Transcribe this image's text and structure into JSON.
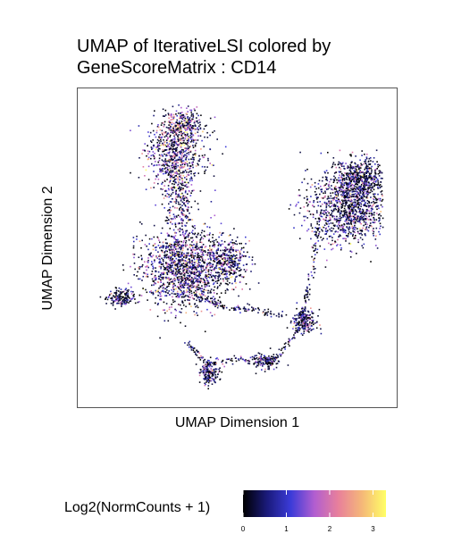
{
  "chart_data": {
    "type": "scatter",
    "title": [
      "UMAP of IterativeLSI colored by",
      "GeneScoreMatrix : CD14"
    ],
    "xlabel": "UMAP Dimension 1",
    "ylabel": "UMAP Dimension 2",
    "legend": {
      "title": "Log2(NormCounts + 1)",
      "ticks": [
        "0",
        "1",
        "2",
        "3"
      ],
      "range": [
        0,
        3.3
      ],
      "colormap": [
        "#000000",
        "#1a1a7a",
        "#3b3bd8",
        "#b25ed0",
        "#e8809b",
        "#f5b878",
        "#ffff66"
      ]
    },
    "grid": false,
    "clusters": [
      {
        "name": "upper-left lobe",
        "cx": 0.28,
        "cy": 0.83,
        "sx": 0.05,
        "sy": 0.06,
        "n": 700,
        "mean": 1.4
      },
      {
        "name": "upper-left top",
        "cx": 0.32,
        "cy": 0.93,
        "sx": 0.03,
        "sy": 0.025,
        "n": 220,
        "mean": 1.6
      },
      {
        "name": "upper-left stem",
        "cx": 0.3,
        "cy": 0.67,
        "sx": 0.025,
        "sy": 0.06,
        "n": 220,
        "mean": 1.2
      },
      {
        "name": "central mass",
        "cx": 0.31,
        "cy": 0.43,
        "sx": 0.07,
        "sy": 0.07,
        "n": 1400,
        "mean": 1.2
      },
      {
        "name": "central right arm",
        "cx": 0.46,
        "cy": 0.45,
        "sx": 0.035,
        "sy": 0.04,
        "n": 350,
        "mean": 1.0
      },
      {
        "name": "left islet",
        "cx": 0.1,
        "cy": 0.33,
        "sx": 0.025,
        "sy": 0.015,
        "n": 160,
        "mean": 0.8
      },
      {
        "name": "right cluster",
        "cx": 0.88,
        "cy": 0.64,
        "sx": 0.07,
        "sy": 0.06,
        "n": 1100,
        "mean": 0.9
      },
      {
        "name": "right cluster top",
        "cx": 0.92,
        "cy": 0.74,
        "sx": 0.04,
        "sy": 0.035,
        "n": 450,
        "mean": 0.7
      },
      {
        "name": "right small blob",
        "cx": 0.73,
        "cy": 0.25,
        "sx": 0.02,
        "sy": 0.02,
        "n": 180,
        "mean": 0.8
      },
      {
        "name": "bottom blob",
        "cx": 0.4,
        "cy": 0.07,
        "sx": 0.018,
        "sy": 0.02,
        "n": 150,
        "mean": 0.7
      },
      {
        "name": "bottom right blob",
        "cx": 0.59,
        "cy": 0.11,
        "sx": 0.025,
        "sy": 0.012,
        "n": 130,
        "mean": 0.7
      }
    ],
    "trajectories": [
      {
        "name": "lower trail",
        "points": [
          [
            0.33,
            0.17
          ],
          [
            0.4,
            0.1
          ],
          [
            0.5,
            0.12
          ],
          [
            0.62,
            0.12
          ],
          [
            0.7,
            0.2
          ],
          [
            0.73,
            0.3
          ],
          [
            0.76,
            0.45
          ],
          [
            0.78,
            0.6
          ]
        ],
        "n": 260,
        "mean": 0.6
      },
      {
        "name": "central trail",
        "points": [
          [
            0.35,
            0.34
          ],
          [
            0.45,
            0.3
          ],
          [
            0.55,
            0.29
          ],
          [
            0.66,
            0.27
          ]
        ],
        "n": 120,
        "mean": 0.6
      }
    ]
  }
}
